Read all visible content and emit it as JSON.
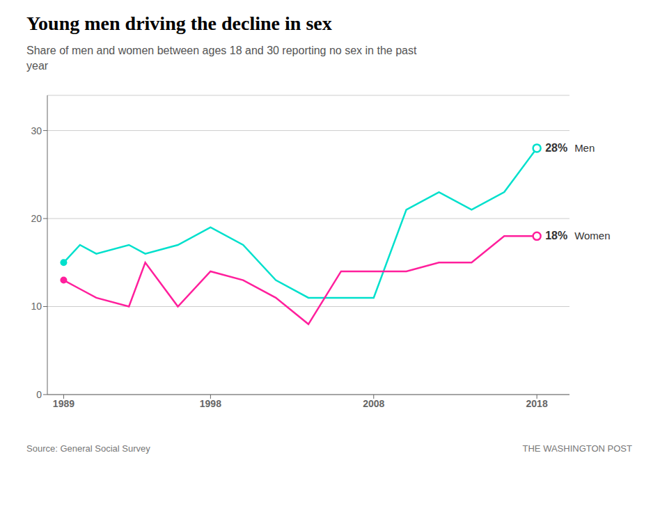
{
  "chart_data": {
    "type": "line",
    "title": "Young men driving the decline in sex",
    "subtitle": "Share of men and women between ages 18 and 30 reporting no sex in the past\nyear",
    "source": "Source: General Social Survey",
    "attribution": "THE WASHINGTON POST",
    "x": [
      1989,
      1990,
      1991,
      1993,
      1994,
      1996,
      1998,
      2000,
      2002,
      2004,
      2006,
      2008,
      2010,
      2012,
      2014,
      2016,
      2018
    ],
    "series": [
      {
        "name": "Men",
        "color": "#00e0cc",
        "values": [
          15,
          17,
          16,
          17,
          16,
          17,
          19,
          17,
          13,
          11,
          11,
          11,
          21,
          23,
          21,
          23,
          28
        ]
      },
      {
        "name": "Women",
        "color": "#ff1f9c",
        "values": [
          13,
          12,
          11,
          10,
          15,
          10,
          14,
          13,
          11,
          8,
          14,
          14,
          14,
          15,
          15,
          18,
          18
        ]
      }
    ],
    "annotations": [
      {
        "text": "28%",
        "x": 2018,
        "y": 28
      },
      {
        "text": "18%",
        "x": 2018,
        "y": 18
      }
    ],
    "xlim": [
      1988,
      2020
    ],
    "xticks": [
      1989,
      1998,
      2008,
      2018
    ],
    "ylim": [
      0,
      34
    ],
    "yticks": [
      0,
      10,
      20,
      30
    ],
    "grid": true
  }
}
